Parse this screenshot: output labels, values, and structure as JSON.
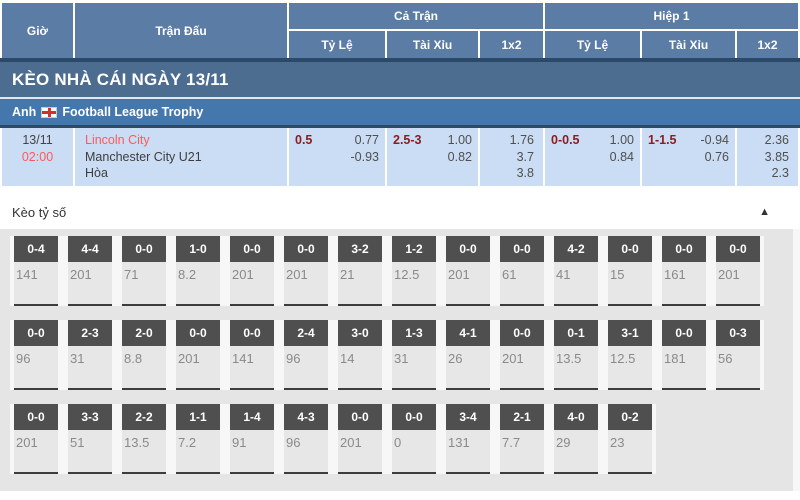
{
  "table_header": {
    "col_time": "Giờ",
    "col_match": "Trận Đấu",
    "group_full": "Cả Trận",
    "group_half": "Hiệp 1",
    "sub_handicap": "Tỷ Lệ",
    "sub_over_under": "Tài Xỉu",
    "sub_1x2": "1x2",
    "sub_handicap_h1": "Tỷ Lệ",
    "sub_over_under_h1": "Tài Xỉu",
    "sub_1x2_h1": "1x2"
  },
  "banner": {
    "title": "KÈO NHÀ CÁI NGÀY 13/11"
  },
  "league": {
    "country": "Anh",
    "flag_icon": "england-flag",
    "name": "Football League Trophy"
  },
  "match": {
    "date": "13/11",
    "time": "02:00",
    "home": "Lincoln City",
    "away": "Manchester City U21",
    "draw_label": "Hòa",
    "full": {
      "hdp_line": "0.5",
      "hdp_odds_1": "0.77",
      "hdp_odds_2": "-0.93",
      "ou_line": "2.5-3",
      "ou_odds_1": "1.00",
      "ou_odds_2": "0.82",
      "x12_1": "1.76",
      "x12_2": "3.7",
      "x12_3": "3.8"
    },
    "half": {
      "hdp_line": "0-0.5",
      "hdp_odds_1": "1.00",
      "hdp_odds_2": "0.84",
      "ou_line": "1-1.5",
      "ou_odds_1": "-0.94",
      "ou_odds_2": "0.76",
      "x12_1": "2.36",
      "x12_2": "3.85",
      "x12_3": "2.3"
    }
  },
  "score_section": {
    "title": "Kèo tỷ số",
    "collapse_icon": "▲",
    "rows": [
      [
        {
          "score": "0-4",
          "odds": "141"
        },
        {
          "score": "4-4",
          "odds": "201"
        },
        {
          "score": "0-0",
          "odds": "71"
        },
        {
          "score": "1-0",
          "odds": "8.2"
        },
        {
          "score": "0-0",
          "odds": "201"
        },
        {
          "score": "0-0",
          "odds": "201"
        },
        {
          "score": "3-2",
          "odds": "21"
        },
        {
          "score": "1-2",
          "odds": "12.5"
        },
        {
          "score": "0-0",
          "odds": "201"
        },
        {
          "score": "0-0",
          "odds": "61"
        },
        {
          "score": "4-2",
          "odds": "41"
        },
        {
          "score": "0-0",
          "odds": "15"
        },
        {
          "score": "0-0",
          "odds": "161"
        },
        {
          "score": "0-0",
          "odds": "201"
        }
      ],
      [
        {
          "score": "0-0",
          "odds": "96"
        },
        {
          "score": "2-3",
          "odds": "31"
        },
        {
          "score": "2-0",
          "odds": "8.8"
        },
        {
          "score": "0-0",
          "odds": "201"
        },
        {
          "score": "0-0",
          "odds": "141"
        },
        {
          "score": "2-4",
          "odds": "96"
        },
        {
          "score": "3-0",
          "odds": "14"
        },
        {
          "score": "1-3",
          "odds": "31"
        },
        {
          "score": "4-1",
          "odds": "26"
        },
        {
          "score": "0-0",
          "odds": "201"
        },
        {
          "score": "0-1",
          "odds": "13.5"
        },
        {
          "score": "3-1",
          "odds": "12.5"
        },
        {
          "score": "0-0",
          "odds": "181"
        },
        {
          "score": "0-3",
          "odds": "56"
        }
      ],
      [
        {
          "score": "0-0",
          "odds": "201"
        },
        {
          "score": "3-3",
          "odds": "51"
        },
        {
          "score": "2-2",
          "odds": "13.5"
        },
        {
          "score": "1-1",
          "odds": "7.2"
        },
        {
          "score": "1-4",
          "odds": "91"
        },
        {
          "score": "4-3",
          "odds": "96"
        },
        {
          "score": "0-0",
          "odds": "201"
        },
        {
          "score": "0-0",
          "odds": "0"
        },
        {
          "score": "3-4",
          "odds": "131"
        },
        {
          "score": "2-1",
          "odds": "7.7"
        },
        {
          "score": "4-0",
          "odds": "29"
        },
        {
          "score": "0-2",
          "odds": "23"
        }
      ]
    ]
  },
  "colors": {
    "header-blue": "#5b7ca4",
    "banner-dark": "#4c6c90",
    "league-blue": "#4477ab",
    "navy-line": "#2b4a69",
    "match-bg": "#cbddf4",
    "accent-red": "#fd5a5a",
    "maroon": "#8c1c21",
    "section-bg": "#e5e5e5",
    "score-box": "#4f4f4f"
  }
}
